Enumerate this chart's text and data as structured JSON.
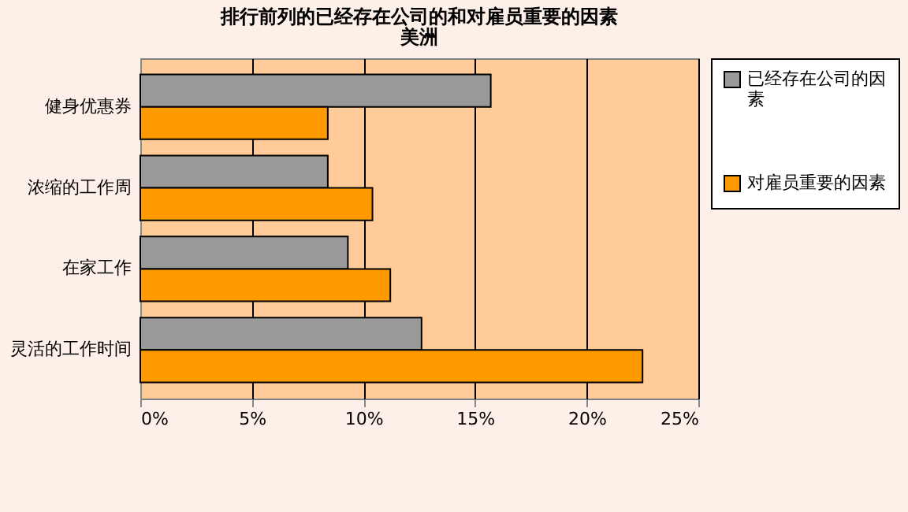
{
  "chart_data": {
    "type": "bar",
    "orientation": "horizontal",
    "title": "排行前列的已经存在公司的和对雇员重要的因素",
    "subtitle": "美洲",
    "categories": [
      "健身优惠券",
      "浓缩的工作周",
      "在家工作",
      "灵活的工作时间"
    ],
    "series": [
      {
        "name": "已经存在公司的因素",
        "color": "#999999",
        "values": [
          15.7,
          8.4,
          9.3,
          12.6
        ]
      },
      {
        "name": "对雇员重要的因素",
        "color": "#ff9900",
        "values": [
          8.4,
          10.4,
          11.2,
          22.5
        ]
      }
    ],
    "xlim": [
      0,
      25
    ],
    "xticks": [
      {
        "value": 0,
        "label": "0%"
      },
      {
        "value": 5,
        "label": "5%"
      },
      {
        "value": 10,
        "label": "10%"
      },
      {
        "value": 15,
        "label": "15%"
      },
      {
        "value": 20,
        "label": "20%"
      },
      {
        "value": 25,
        "label": "25%"
      }
    ],
    "grid": "x",
    "legend": "right"
  }
}
